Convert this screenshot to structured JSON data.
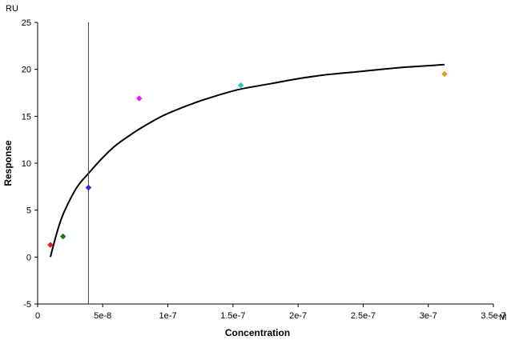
{
  "chart_data": {
    "type": "scatter",
    "xlabel": "Concentration",
    "ylabel": "Response",
    "x_unit": "M",
    "y_unit": "RU",
    "xlim": [
      0,
      3.5e-07
    ],
    "ylim": [
      -5,
      25
    ],
    "x_ticks": [
      0,
      5e-08,
      1e-07,
      1.5e-07,
      2e-07,
      2.5e-07,
      3e-07,
      3.5e-07
    ],
    "x_tick_labels": [
      "0",
      "5e-8",
      "1e-7",
      "1.5e-7",
      "2e-7",
      "2.5e-7",
      "3e-7",
      "3.5e-7"
    ],
    "y_ticks": [
      -5,
      0,
      5,
      10,
      15,
      20,
      25
    ],
    "y_tick_labels": [
      "-5",
      "0",
      "5",
      "10",
      "15",
      "20",
      "25"
    ],
    "grid": false,
    "points": [
      {
        "x": 9.8e-09,
        "y": 1.3,
        "color": "#e02020"
      },
      {
        "x": 1.95e-08,
        "y": 2.2,
        "color": "#1f7a1f"
      },
      {
        "x": 3.9e-08,
        "y": 7.4,
        "color": "#2b2bd9"
      },
      {
        "x": 7.8e-08,
        "y": 16.9,
        "color": "#e020e0"
      },
      {
        "x": 1.56e-07,
        "y": 18.3,
        "color": "#20c8c8"
      },
      {
        "x": 3.125e-07,
        "y": 19.5,
        "color": "#d9a020"
      }
    ],
    "fit_curve": {
      "color": "#000000",
      "x_start": 9.8e-09,
      "x_end": 3.125e-07,
      "points": [
        [
          9.8e-09,
          0.0
        ],
        [
          1.5e-08,
          2.7
        ],
        [
          2e-08,
          4.7
        ],
        [
          3e-08,
          7.4
        ],
        [
          3.9e-08,
          8.9
        ],
        [
          5e-08,
          10.6
        ],
        [
          6e-08,
          11.9
        ],
        [
          7e-08,
          12.9
        ],
        [
          8e-08,
          13.8
        ],
        [
          9e-08,
          14.6
        ],
        [
          1e-07,
          15.3
        ],
        [
          1.2e-07,
          16.4
        ],
        [
          1.4e-07,
          17.3
        ],
        [
          1.56e-07,
          17.9
        ],
        [
          1.8e-07,
          18.5
        ],
        [
          2e-07,
          19.0
        ],
        [
          2.2e-07,
          19.4
        ],
        [
          2.5e-07,
          19.8
        ],
        [
          2.8e-07,
          20.2
        ],
        [
          3.125e-07,
          20.5
        ]
      ]
    },
    "vertical_line_x": 3.9e-08,
    "vertical_line_color": "#404040"
  }
}
